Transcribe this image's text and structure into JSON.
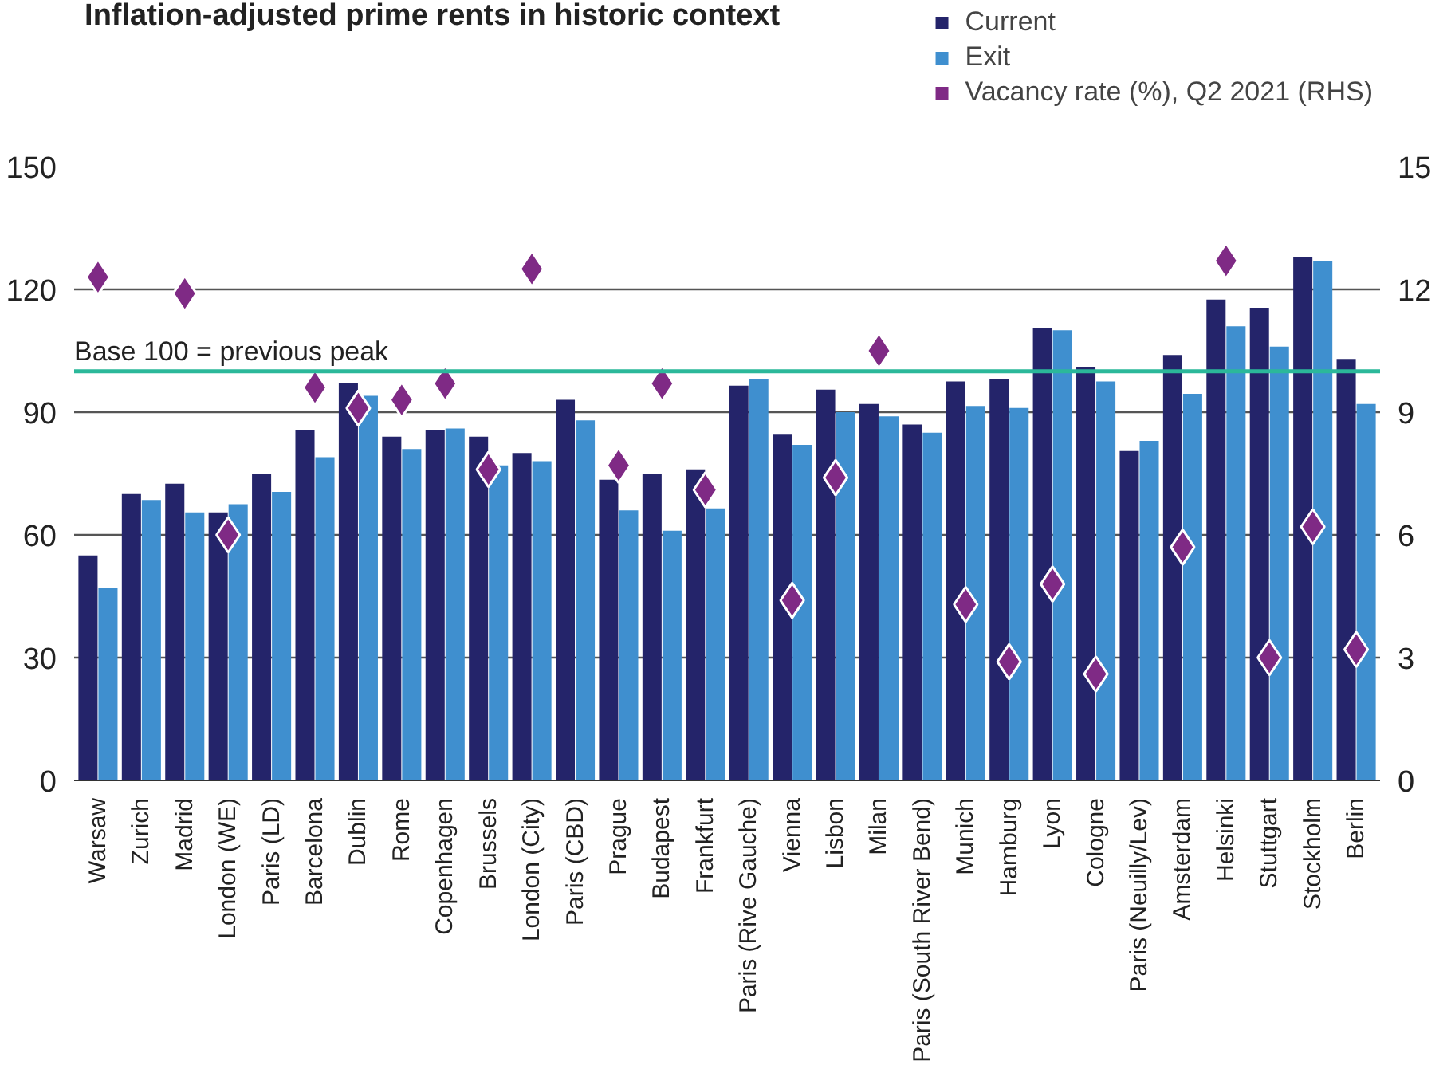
{
  "chart_data": {
    "type": "bar",
    "title": "Inflation-adjusted prime rents in historic context",
    "categories": [
      "Warsaw",
      "Zurich",
      "Madrid",
      "London (WE)",
      "Paris (LD)",
      "Barcelona",
      "Dublin",
      "Rome",
      "Copenhagen",
      "Brussels",
      "London (City)",
      "Paris (CBD)",
      "Prague",
      "Budapest",
      "Frankfurt",
      "Paris (Rive Gauche)",
      "Vienna",
      "Lisbon",
      "Milan",
      "Paris (South River Bend)",
      "Munich",
      "Hamburg",
      "Lyon",
      "Cologne",
      "Paris (Neuilly/Lev)",
      "Amsterdam",
      "Helsinki",
      "Stuttgart",
      "Stockholm",
      "Berlin"
    ],
    "series": [
      {
        "name": "Current",
        "color": "#24246a",
        "values": [
          55,
          70,
          72.5,
          65.5,
          75,
          85.5,
          97,
          84,
          85.5,
          84,
          80,
          93,
          73.5,
          75,
          76,
          96.5,
          84.5,
          95.5,
          92,
          87,
          97.5,
          98,
          110.5,
          101,
          80.5,
          104,
          117.5,
          115.5,
          128,
          103
        ]
      },
      {
        "name": "Exit",
        "color": "#3f8fcf",
        "values": [
          47,
          68.5,
          65.5,
          67.5,
          70.5,
          79,
          94,
          81,
          86,
          77,
          78,
          88,
          66,
          61,
          66.5,
          98,
          82,
          90,
          89,
          85,
          91.5,
          91,
          110,
          97.5,
          83,
          94.5,
          111,
          106,
          127,
          92
        ]
      },
      {
        "name": "Vacancy rate (%), Q2 2021 (RHS)",
        "type": "scatter",
        "axis": "y2",
        "marker": "diamond",
        "color": "#7f2a85",
        "values": [
          12.3,
          null,
          11.9,
          6.0,
          null,
          9.6,
          9.1,
          9.3,
          9.7,
          7.6,
          12.5,
          null,
          7.7,
          9.7,
          7.1,
          null,
          4.4,
          7.4,
          10.5,
          null,
          4.3,
          2.9,
          4.8,
          2.6,
          null,
          5.7,
          12.7,
          3.0,
          6.2,
          3.2
        ]
      }
    ],
    "ylim": [
      0,
      150
    ],
    "yticks": [
      0,
      30,
      60,
      90,
      120,
      150
    ],
    "y2lim": [
      0,
      15
    ],
    "y2ticks": [
      0,
      3,
      6,
      9,
      12,
      15
    ],
    "ref_lines": [
      {
        "axis": "y",
        "value": 100,
        "label": "Base 100 = previous peak",
        "color": "#2bb89a"
      }
    ],
    "grid": "y",
    "legend": "top right"
  }
}
